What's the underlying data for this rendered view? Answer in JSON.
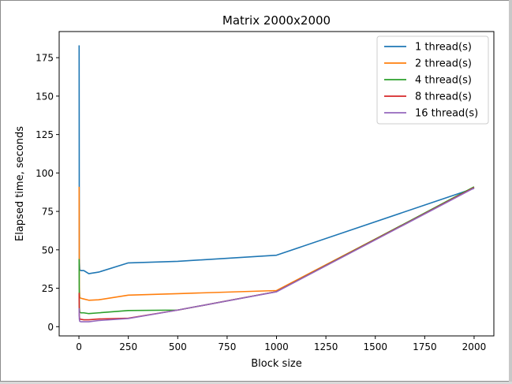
{
  "chart_data": {
    "type": "line",
    "title": "Matrix 2000x2000",
    "xlabel": "Block size",
    "ylabel": "Elapsed time, seconds",
    "xlim": [
      -100,
      2100
    ],
    "ylim": [
      -6,
      192
    ],
    "xticks": [
      0,
      250,
      500,
      750,
      1000,
      1250,
      1500,
      1750,
      2000
    ],
    "yticks": [
      0,
      25,
      50,
      75,
      100,
      125,
      150,
      175
    ],
    "legend": "top-right",
    "grid": false,
    "x": [
      1,
      2,
      4,
      10,
      25,
      50,
      100,
      250,
      500,
      1000,
      2000
    ],
    "series": [
      {
        "name": "1 thread(s)",
        "color": "#1f77b4",
        "values": [
          183,
          44,
          37,
          36.5,
          36.5,
          34.5,
          35.5,
          41.5,
          42.5,
          46.5,
          90
        ]
      },
      {
        "name": "2 thread(s)",
        "color": "#ff7f0e",
        "values": [
          91,
          26,
          19,
          18.5,
          18,
          17.2,
          17.5,
          20.5,
          21.5,
          23.5,
          90.5
        ]
      },
      {
        "name": "4 thread(s)",
        "color": "#2ca02c",
        "values": [
          44,
          13,
          9.5,
          9,
          9,
          8.5,
          9,
          10.5,
          10.8,
          22.8,
          91
        ]
      },
      {
        "name": "8 thread(s)",
        "color": "#d62728",
        "values": [
          22,
          7,
          5,
          4.8,
          4.5,
          4.5,
          5,
          5.5,
          10.8,
          22.8,
          90.5
        ]
      },
      {
        "name": "16 thread(s)",
        "color": "#9467bd",
        "values": [
          12,
          5,
          3.5,
          3.2,
          3.2,
          3.2,
          4,
          5.3,
          10.8,
          22.7,
          90.2
        ]
      }
    ]
  }
}
